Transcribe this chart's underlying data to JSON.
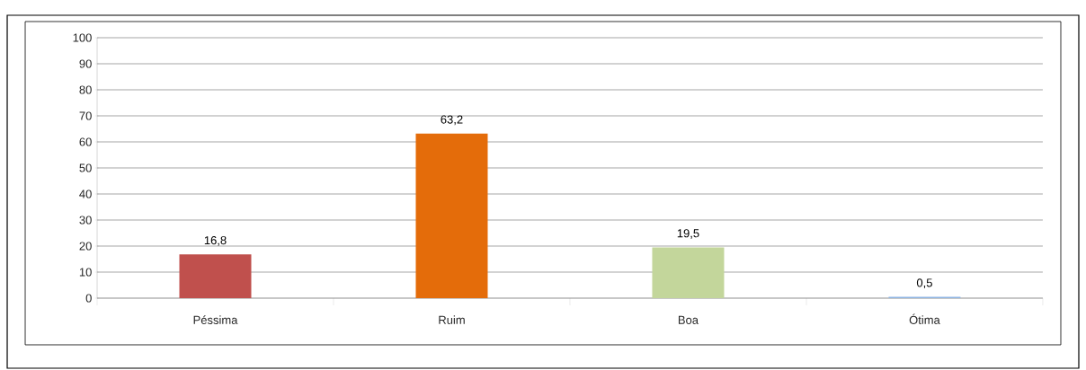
{
  "chart_data": {
    "type": "bar",
    "categories": [
      "Péssima",
      "Ruim",
      "Boa",
      "Ótima"
    ],
    "values": [
      16.8,
      63.2,
      19.5,
      0.5
    ],
    "colors": [
      "#c0504d",
      "#e46c0a",
      "#c3d69b",
      "#8eb4e3"
    ],
    "value_labels": [
      "16,8",
      "63,2",
      "19,5",
      "0,5"
    ],
    "ylim": [
      0,
      100
    ],
    "yticks": [
      0,
      10,
      20,
      30,
      40,
      50,
      60,
      70,
      80,
      90,
      100
    ],
    "grid": "y"
  }
}
